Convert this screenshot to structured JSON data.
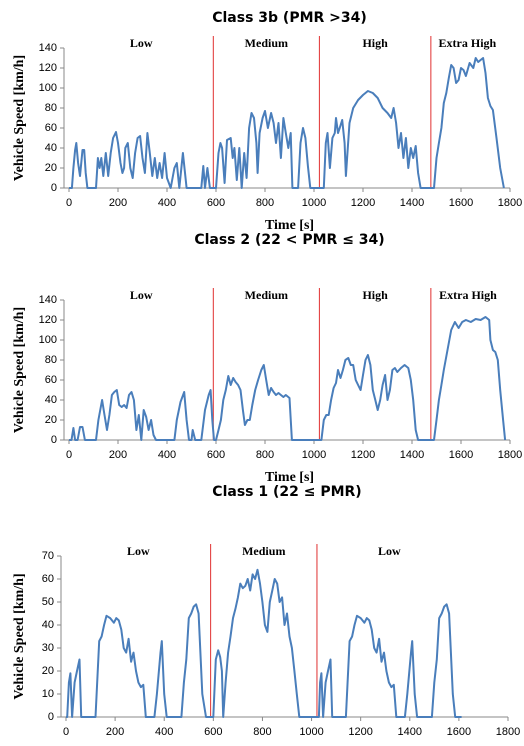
{
  "chart_data": [
    {
      "type": "line",
      "title": "Class 3b (PMR >34)",
      "xlabel": "Time [s]",
      "ylabel": "Vehicle Speed [km/h]",
      "color": "#4a7ebb",
      "boundary_color": "#e03030",
      "phase_labels": [
        "Low",
        "Medium",
        "High",
        "Extra High"
      ],
      "phase_boundaries": [
        589,
        1022,
        1477
      ],
      "xlim": [
        0,
        1800
      ],
      "ylim": [
        0,
        140
      ],
      "xticks": [
        0,
        200,
        400,
        600,
        800,
        1000,
        1200,
        1400,
        1600,
        1800
      ],
      "yticks": [
        0,
        20,
        40,
        60,
        80,
        100,
        120,
        140
      ],
      "x": [
        0,
        12,
        18,
        25,
        30,
        37,
        45,
        55,
        62,
        68,
        75,
        110,
        118,
        125,
        132,
        140,
        150,
        160,
        170,
        180,
        192,
        200,
        210,
        218,
        225,
        230,
        240,
        250,
        260,
        270,
        280,
        290,
        300,
        310,
        320,
        330,
        340,
        350,
        360,
        370,
        380,
        390,
        400,
        415,
        430,
        440,
        450,
        465,
        480,
        540,
        548,
        555,
        565,
        575,
        589,
        600,
        610,
        618,
        625,
        635,
        645,
        660,
        668,
        675,
        685,
        695,
        705,
        715,
        725,
        735,
        745,
        755,
        765,
        770,
        778,
        790,
        800,
        812,
        825,
        835,
        845,
        855,
        865,
        875,
        885,
        895,
        905,
        912,
        935,
        945,
        955,
        965,
        975,
        985,
        1022,
        1040,
        1048,
        1055,
        1065,
        1075,
        1085,
        1090,
        1098,
        1105,
        1115,
        1125,
        1130,
        1135,
        1145,
        1160,
        1180,
        1200,
        1220,
        1240,
        1260,
        1280,
        1300,
        1315,
        1325,
        1335,
        1345,
        1355,
        1365,
        1375,
        1385,
        1395,
        1405,
        1415,
        1425,
        1435,
        1477,
        1490,
        1500,
        1510,
        1520,
        1530,
        1540,
        1550,
        1560,
        1570,
        1580,
        1590,
        1600,
        1610,
        1620,
        1635,
        1650,
        1660,
        1670,
        1680,
        1690,
        1700,
        1710,
        1720,
        1730,
        1745,
        1760,
        1775
      ],
      "values": [
        0,
        0,
        20,
        38,
        45,
        25,
        12,
        38,
        38,
        15,
        0,
        0,
        30,
        20,
        30,
        12,
        35,
        12,
        35,
        50,
        56,
        45,
        25,
        15,
        20,
        40,
        45,
        20,
        10,
        35,
        50,
        52,
        30,
        15,
        55,
        35,
        12,
        30,
        10,
        25,
        10,
        35,
        10,
        0,
        20,
        25,
        0,
        35,
        0,
        0,
        22,
        0,
        20,
        0,
        0,
        0,
        35,
        45,
        40,
        5,
        48,
        50,
        30,
        40,
        8,
        40,
        0,
        35,
        10,
        60,
        75,
        70,
        45,
        15,
        55,
        70,
        77,
        60,
        75,
        65,
        45,
        65,
        30,
        70,
        55,
        40,
        55,
        0,
        0,
        45,
        60,
        50,
        22,
        0,
        0,
        0,
        45,
        55,
        20,
        50,
        55,
        70,
        55,
        60,
        68,
        45,
        12,
        30,
        65,
        80,
        88,
        93,
        97,
        95,
        90,
        80,
        75,
        70,
        80,
        65,
        40,
        55,
        30,
        50,
        20,
        40,
        30,
        42,
        15,
        0,
        0,
        0,
        30,
        45,
        60,
        85,
        95,
        110,
        123,
        120,
        105,
        108,
        120,
        118,
        112,
        125,
        120,
        130,
        126,
        128,
        130,
        115,
        90,
        82,
        78,
        50,
        20,
        0
      ]
    },
    {
      "type": "line",
      "title": "Class 2 (22 < PMR ≤ 34)",
      "xlabel": "Time [s]",
      "ylabel": "Vehicle Speed [km/h]",
      "color": "#4a7ebb",
      "boundary_color": "#e03030",
      "phase_labels": [
        "Low",
        "Medium",
        "High",
        "Extra High"
      ],
      "phase_boundaries": [
        589,
        1022,
        1477
      ],
      "xlim": [
        0,
        1800
      ],
      "ylim": [
        0,
        140
      ],
      "xticks": [
        0,
        200,
        400,
        600,
        800,
        1000,
        1200,
        1400,
        1600,
        1800
      ],
      "yticks": [
        0,
        20,
        40,
        60,
        80,
        100,
        120,
        140
      ],
      "x": [
        0,
        10,
        18,
        25,
        35,
        45,
        55,
        65,
        110,
        120,
        135,
        145,
        155,
        165,
        175,
        185,
        195,
        205,
        215,
        225,
        235,
        245,
        255,
        265,
        275,
        285,
        295,
        305,
        315,
        325,
        335,
        345,
        355,
        430,
        440,
        455,
        470,
        480,
        490,
        500,
        505,
        515,
        540,
        555,
        570,
        578,
        585,
        592,
        600,
        610,
        620,
        630,
        640,
        650,
        660,
        670,
        680,
        690,
        700,
        710,
        718,
        728,
        738,
        748,
        760,
        772,
        785,
        795,
        805,
        815,
        825,
        835,
        845,
        855,
        865,
        875,
        885,
        900,
        910,
        1022,
        1030,
        1040,
        1050,
        1060,
        1070,
        1080,
        1090,
        1098,
        1108,
        1118,
        1128,
        1140,
        1150,
        1160,
        1170,
        1180,
        1190,
        1200,
        1210,
        1220,
        1230,
        1240,
        1250,
        1260,
        1270,
        1280,
        1290,
        1300,
        1310,
        1320,
        1330,
        1340,
        1355,
        1370,
        1385,
        1395,
        1405,
        1415,
        1425,
        1477,
        1490,
        1500,
        1510,
        1520,
        1530,
        1545,
        1560,
        1575,
        1590,
        1605,
        1620,
        1640,
        1660,
        1680,
        1700,
        1715,
        1720,
        1730,
        1740,
        1750,
        1760,
        1772,
        1780
      ],
      "values": [
        0,
        0,
        12,
        0,
        0,
        13,
        13,
        0,
        0,
        20,
        40,
        25,
        10,
        25,
        45,
        48,
        50,
        35,
        33,
        35,
        32,
        45,
        48,
        40,
        10,
        25,
        0,
        30,
        23,
        10,
        20,
        5,
        0,
        0,
        20,
        38,
        48,
        20,
        0,
        0,
        10,
        0,
        0,
        30,
        45,
        50,
        20,
        0,
        0,
        10,
        20,
        40,
        50,
        64,
        55,
        62,
        58,
        55,
        50,
        30,
        15,
        20,
        20,
        35,
        50,
        60,
        70,
        75,
        60,
        45,
        52,
        48,
        45,
        47,
        45,
        43,
        45,
        42,
        0,
        0,
        0,
        20,
        25,
        25,
        40,
        52,
        57,
        70,
        62,
        70,
        80,
        82,
        75,
        75,
        60,
        55,
        50,
        65,
        80,
        85,
        75,
        50,
        40,
        30,
        40,
        55,
        65,
        40,
        50,
        70,
        72,
        68,
        72,
        75,
        72,
        60,
        40,
        10,
        0,
        0,
        0,
        20,
        40,
        55,
        70,
        90,
        110,
        118,
        112,
        118,
        120,
        118,
        121,
        120,
        123,
        120,
        100,
        90,
        88,
        80,
        50,
        20,
        0
      ]
    },
    {
      "type": "line",
      "title": "Class 1 (22 ≤ PMR)",
      "xlabel": "Time [s]",
      "ylabel": "Vehicle Speed [km/h]",
      "color": "#4a7ebb",
      "boundary_color": "#e03030",
      "phase_labels": [
        "Low",
        "Medium",
        "Low"
      ],
      "phase_boundaries": [
        589,
        1022
      ],
      "xlim": [
        0,
        1800
      ],
      "ylim": [
        0,
        70
      ],
      "xticks": [
        0,
        200,
        400,
        600,
        800,
        1000,
        1200,
        1400,
        1600,
        1800
      ],
      "yticks": [
        0,
        10,
        20,
        30,
        40,
        50,
        60,
        70
      ],
      "x": [
        0,
        5,
        12,
        18,
        25,
        35,
        45,
        55,
        62,
        120,
        135,
        145,
        155,
        165,
        180,
        195,
        205,
        215,
        225,
        235,
        245,
        255,
        265,
        275,
        285,
        295,
        305,
        315,
        325,
        360,
        370,
        385,
        390,
        400,
        410,
        470,
        480,
        490,
        500,
        510,
        520,
        530,
        540,
        555,
        570,
        589,
        600,
        610,
        620,
        628,
        635,
        640,
        650,
        660,
        670,
        680,
        690,
        700,
        710,
        720,
        730,
        740,
        750,
        760,
        770,
        780,
        790,
        800,
        810,
        820,
        830,
        840,
        850,
        860,
        870,
        880,
        890,
        900,
        910,
        920,
        930,
        940,
        950,
        1022,
        1030,
        1035,
        1040,
        1047,
        1057,
        1067,
        1077,
        1084,
        1140,
        1155,
        1165,
        1175,
        1185,
        1200,
        1215,
        1225,
        1235,
        1245,
        1255,
        1265,
        1275,
        1285,
        1295,
        1305,
        1315,
        1325,
        1335,
        1345,
        1380,
        1390,
        1405,
        1410,
        1420,
        1430,
        1490,
        1500,
        1510,
        1520,
        1530,
        1540,
        1550,
        1560,
        1575,
        1585,
        1611
      ],
      "values": [
        0,
        0,
        15,
        19,
        0,
        15,
        20,
        25,
        0,
        0,
        33,
        35,
        40,
        44,
        43,
        41,
        43,
        42,
        38,
        30,
        28,
        34,
        24,
        28,
        20,
        15,
        13,
        14,
        0,
        0,
        10,
        28,
        33,
        10,
        0,
        0,
        15,
        25,
        43,
        45,
        48,
        49,
        45,
        10,
        0,
        0,
        0,
        25,
        29,
        26,
        20,
        0,
        15,
        28,
        35,
        43,
        47,
        52,
        58,
        56,
        57,
        60,
        55,
        62,
        60,
        64,
        58,
        50,
        40,
        37,
        50,
        55,
        60,
        58,
        50,
        52,
        40,
        45,
        35,
        30,
        20,
        10,
        0,
        0,
        0,
        15,
        19,
        0,
        15,
        20,
        25,
        0,
        0,
        33,
        35,
        40,
        44,
        43,
        41,
        43,
        42,
        38,
        30,
        28,
        34,
        24,
        28,
        20,
        15,
        13,
        14,
        0,
        0,
        10,
        28,
        33,
        10,
        0,
        0,
        15,
        25,
        43,
        45,
        48,
        49,
        45,
        10,
        0,
        0
      ]
    }
  ]
}
